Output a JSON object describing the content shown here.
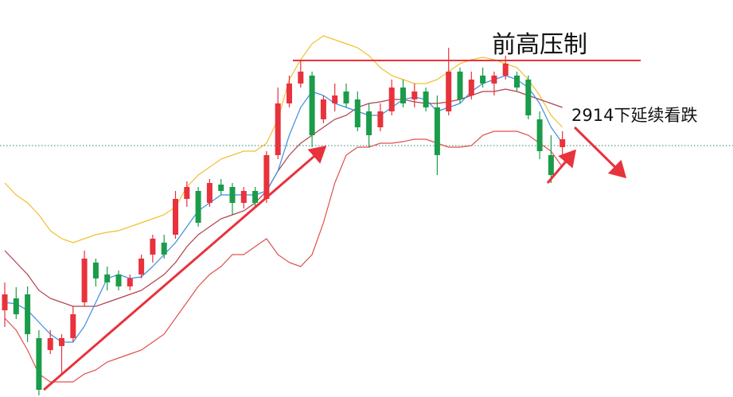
{
  "chart_data": {
    "type": "candlestick",
    "categories": [
      null,
      null,
      null,
      null,
      null,
      null,
      null,
      null,
      null,
      null,
      null,
      null,
      null,
      null,
      null,
      null,
      null,
      null,
      null,
      null,
      null,
      null,
      null,
      null,
      null,
      null,
      null,
      null,
      null,
      null,
      null,
      null,
      null,
      null,
      null,
      null,
      null,
      null,
      null,
      null,
      null,
      null,
      null,
      null,
      null,
      null,
      null,
      null,
      null,
      null
    ],
    "open": [
      110,
      125,
      130,
      75,
      60,
      65,
      75,
      120,
      170,
      155,
      155,
      140,
      155,
      180,
      195,
      205,
      250,
      260,
      245,
      268,
      265,
      245,
      260,
      250,
      305,
      370,
      395,
      405,
      350,
      370,
      385,
      375,
      360,
      340,
      360,
      390,
      375,
      385,
      365,
      360,
      410,
      380,
      405,
      395,
      405,
      405,
      400,
      350,
      305,
      315
    ],
    "high": [
      145,
      139,
      140,
      85,
      85,
      80,
      115,
      185,
      175,
      165,
      160,
      155,
      180,
      205,
      205,
      260,
      272,
      265,
      275,
      275,
      270,
      265,
      265,
      310,
      390,
      405,
      425,
      410,
      380,
      395,
      395,
      385,
      370,
      370,
      400,
      400,
      395,
      390,
      380,
      440,
      415,
      410,
      415,
      410,
      430,
      410,
      405,
      360,
      330,
      335
    ],
    "low": [
      89,
      99,
      70,
      3,
      55,
      30,
      70,
      115,
      140,
      135,
      135,
      135,
      150,
      170,
      175,
      200,
      240,
      215,
      240,
      255,
      230,
      238,
      240,
      245,
      300,
      365,
      390,
      315,
      345,
      360,
      365,
      335,
      315,
      335,
      355,
      365,
      365,
      360,
      280,
      355,
      370,
      375,
      390,
      380,
      400,
      385,
      350,
      300,
      270,
      305
    ],
    "close": [
      130,
      105,
      80,
      10,
      75,
      75,
      105,
      175,
      150,
      145,
      140,
      150,
      175,
      200,
      180,
      250,
      265,
      220,
      270,
      260,
      245,
      260,
      245,
      305,
      370,
      395,
      410,
      330,
      375,
      380,
      370,
      340,
      330,
      360,
      390,
      370,
      385,
      365,
      305,
      410,
      375,
      400,
      395,
      405,
      420,
      390,
      355,
      310,
      280,
      325
    ],
    "up_color": "#e8323c",
    "down_color": "#1a9c4a",
    "lines": [
      {
        "color": "#f0c030",
        "values": [
          270,
          255,
          245,
          230,
          210,
          200,
          195,
          200,
          205,
          208,
          210,
          215,
          220,
          225,
          230,
          240,
          265,
          280,
          290,
          300,
          305,
          310,
          310,
          320,
          350,
          400,
          425,
          445,
          455,
          450,
          445,
          440,
          430,
          415,
          405,
          400,
          395,
          395,
          400,
          410,
          420,
          425,
          428,
          425,
          420,
          415,
          400,
          380,
          355,
          340
        ]
      },
      {
        "color": "#b0404a",
        "values": [
          185,
          170,
          155,
          135,
          125,
          120,
          115,
          115,
          115,
          120,
          125,
          130,
          135,
          145,
          155,
          170,
          190,
          205,
          215,
          225,
          230,
          235,
          245,
          260,
          285,
          305,
          320,
          330,
          340,
          350,
          355,
          365,
          370,
          372,
          375,
          375,
          372,
          370,
          370,
          372,
          375,
          380,
          385,
          385,
          388,
          385,
          380,
          375,
          370,
          365
        ]
      },
      {
        "color": "#e05050",
        "values": [
          100,
          85,
          60,
          30,
          20,
          20,
          20,
          30,
          35,
          45,
          50,
          55,
          60,
          70,
          80,
          100,
          120,
          140,
          155,
          165,
          180,
          180,
          190,
          200,
          180,
          170,
          165,
          180,
          220,
          270,
          305,
          315,
          315,
          320,
          320,
          322,
          325,
          325,
          320,
          315,
          315,
          317,
          330,
          335,
          335,
          335,
          330,
          320,
          310,
          290
        ]
      },
      {
        "color": "#3a8ee0",
        "values": [
          120,
          118,
          110,
          95,
          80,
          70,
          70,
          90,
          120,
          150,
          155,
          150,
          152,
          165,
          180,
          195,
          215,
          235,
          245,
          255,
          255,
          255,
          255,
          260,
          285,
          330,
          365,
          385,
          380,
          370,
          365,
          360,
          355,
          355,
          365,
          375,
          378,
          375,
          360,
          365,
          370,
          385,
          395,
          400,
          405,
          400,
          390,
          370,
          340,
          320
        ]
      }
    ],
    "ylim": [
      0,
      500
    ],
    "resistance": {
      "value": 424,
      "label": "前高压制"
    },
    "level": {
      "value": 317,
      "label": "2914下延续看跌"
    }
  }
}
